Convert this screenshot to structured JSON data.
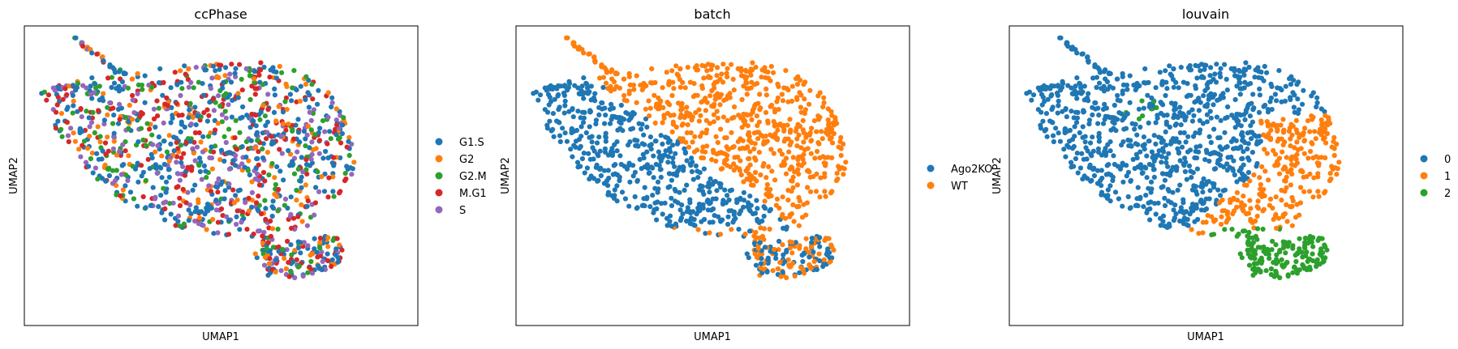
{
  "chart_data": [
    {
      "type": "scatter",
      "title": "ccPhase",
      "xlabel": "UMAP1",
      "ylabel": "UMAP2",
      "grid": false,
      "ticks": false,
      "legend_placement": "right",
      "series": [
        {
          "name": "G1.S",
          "color": "#1f77b4"
        },
        {
          "name": "G2",
          "color": "#ff7f0e"
        },
        {
          "name": "G2.M",
          "color": "#2ca02c"
        },
        {
          "name": "M.G1",
          "color": "#d62728"
        },
        {
          "name": "S",
          "color": "#9467bd"
        }
      ],
      "color_mode": "mixed",
      "weights": [
        0.34,
        0.12,
        0.16,
        0.22,
        0.16
      ]
    },
    {
      "type": "scatter",
      "title": "batch",
      "xlabel": "UMAP1",
      "ylabel": "UMAP2",
      "grid": false,
      "ticks": false,
      "legend_placement": "right",
      "series": [
        {
          "name": "Ago2KO",
          "color": "#1f77b4"
        },
        {
          "name": "WT",
          "color": "#ff7f0e"
        }
      ],
      "color_mode": "batch"
    },
    {
      "type": "scatter",
      "title": "louvain",
      "xlabel": "UMAP1",
      "ylabel": "UMAP2",
      "grid": false,
      "ticks": false,
      "legend_placement": "right",
      "series": [
        {
          "name": "0",
          "color": "#1f77b4"
        },
        {
          "name": "1",
          "color": "#ff7f0e"
        },
        {
          "name": "2",
          "color": "#2ca02c"
        }
      ],
      "color_mode": "louvain"
    }
  ]
}
